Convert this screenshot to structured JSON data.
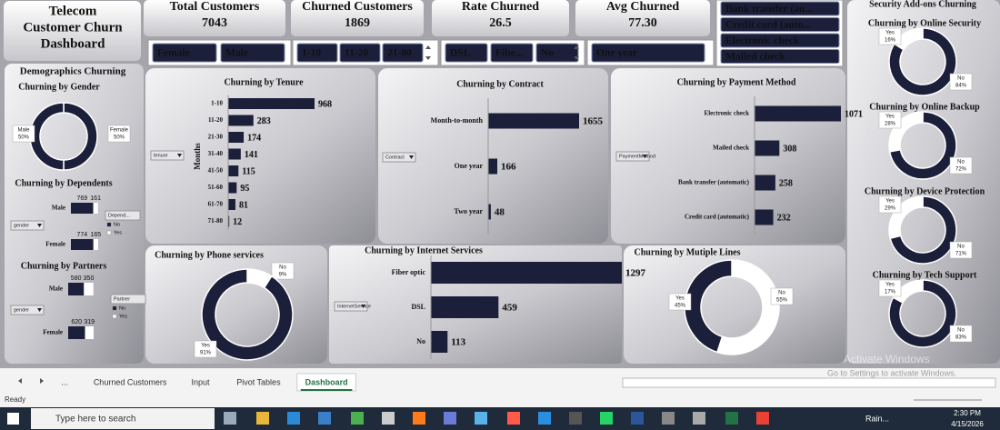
{
  "header": {
    "title_lines": [
      "Telecom",
      "Customer Churn",
      "Dashboard"
    ]
  },
  "kpis": [
    {
      "label": "Total Customers",
      "value": 7043
    },
    {
      "label": "Churned Customers",
      "value": 1869
    },
    {
      "label": "Rate Churned",
      "value": 26.5
    },
    {
      "label": "Avg Churned",
      "value": "77.30"
    }
  ],
  "slicers": {
    "payment": [
      "Bank transfer (au...",
      "Credit card (auto...",
      "Electronic check",
      "Mailed check"
    ],
    "gender": [
      "Female",
      "Male"
    ],
    "tenure": [
      "1-10",
      "11-20",
      "21-80"
    ],
    "internet": [
      "DSL",
      "Fibe...",
      "No"
    ],
    "contract": [
      "One year"
    ]
  },
  "panels": {
    "demographics": "Demographics Churning",
    "security": "Security Add-ons Churning"
  },
  "chart_data": [
    {
      "type": "doughnut",
      "title": "Churning by Gender",
      "categories": [
        "Female",
        "Male"
      ],
      "values": [
        50,
        50
      ],
      "value_labels": [
        "50%",
        "50%"
      ],
      "colors": [
        "#1c1f3a",
        "#1c1f3a"
      ]
    },
    {
      "type": "stacked-bar",
      "title": "Churning by Dependents",
      "filter": "gender",
      "legend_title": "Depend...",
      "categories": [
        "Male",
        "Female"
      ],
      "series": [
        {
          "name": "No",
          "color": "#1c1f3a",
          "values": [
            769,
            774
          ]
        },
        {
          "name": "Yes",
          "color": "#ffffff",
          "values": [
            161,
            165
          ]
        }
      ]
    },
    {
      "type": "stacked-bar",
      "title": "Churning by Partners",
      "filter": "gender",
      "legend_title": "Partner",
      "categories": [
        "Male",
        "Female"
      ],
      "series": [
        {
          "name": "No",
          "color": "#1c1f3a",
          "values": [
            580,
            620
          ]
        },
        {
          "name": "Yes",
          "color": "#ffffff",
          "values": [
            350,
            319
          ]
        }
      ]
    },
    {
      "type": "bar",
      "title": "Churning by Tenure",
      "filter": "tenure",
      "axis_label": "Months",
      "categories": [
        "1-10",
        "11-20",
        "21-30",
        "31-40",
        "41-50",
        "51-60",
        "61-70",
        "71-80"
      ],
      "values": [
        968,
        283,
        174,
        141,
        115,
        95,
        81,
        12
      ],
      "color": "#1c1f3a"
    },
    {
      "type": "bar",
      "title": "Churning by Contract",
      "filter": "Contract",
      "categories": [
        "Month-to-month",
        "One year",
        "Two year"
      ],
      "values": [
        1655,
        166,
        48
      ],
      "color": "#1c1f3a"
    },
    {
      "type": "bar",
      "title": "Churning by Payment Method",
      "filter": "PaymentMethod",
      "categories": [
        "Electronic check",
        "Mailed check",
        "Bank transfer (automatic)",
        "Credit card (automatic)"
      ],
      "values": [
        1071,
        308,
        258,
        232
      ],
      "color": "#1c1f3a"
    },
    {
      "type": "doughnut",
      "title": "Churning by Phone services",
      "categories": [
        "No",
        "Yes"
      ],
      "values": [
        9,
        91
      ],
      "value_labels": [
        "9%",
        "91%"
      ],
      "colors": [
        "#ffffff",
        "#1c1f3a"
      ]
    },
    {
      "type": "bar",
      "title": "Churning by Internet Services",
      "filter": "InternetService",
      "categories": [
        "Fiber optic",
        "DSL",
        "No"
      ],
      "values": [
        1297,
        459,
        113
      ],
      "color": "#1c1f3a"
    },
    {
      "type": "doughnut",
      "title": "Churning by Mutiple Lines",
      "categories": [
        "No",
        "Yes"
      ],
      "values": [
        55,
        45
      ],
      "value_labels": [
        "55%",
        "45%"
      ],
      "colors": [
        "#ffffff",
        "#1c1f3a"
      ]
    },
    {
      "type": "doughnut",
      "title": "Churning by Online Security",
      "categories": [
        "No",
        "Yes"
      ],
      "values": [
        84,
        16
      ],
      "value_labels": [
        "84%",
        "16%"
      ],
      "colors": [
        "#1c1f3a",
        "#ffffff"
      ]
    },
    {
      "type": "doughnut",
      "title": "Churning by Online Backup",
      "categories": [
        "No",
        "Yes"
      ],
      "values": [
        72,
        28
      ],
      "value_labels": [
        "72%",
        "28%"
      ],
      "colors": [
        "#1c1f3a",
        "#ffffff"
      ]
    },
    {
      "type": "doughnut",
      "title": "Churning by Device Protection",
      "categories": [
        "No",
        "Yes"
      ],
      "values": [
        71,
        29
      ],
      "value_labels": [
        "71%",
        "29%"
      ],
      "colors": [
        "#1c1f3a",
        "#ffffff"
      ]
    },
    {
      "type": "doughnut",
      "title": "Churning by Tech Support",
      "categories": [
        "No",
        "Yes"
      ],
      "values": [
        83,
        17
      ],
      "value_labels": [
        "83%",
        "17%"
      ],
      "colors": [
        "#1c1f3a",
        "#ffffff"
      ]
    }
  ],
  "excel": {
    "sheet_tabs": [
      "...",
      "Churned Customers",
      "Input",
      "Pivot Tables",
      "Dashboard"
    ],
    "active_tab": "Dashboard",
    "status": "Ready"
  },
  "watermark": [
    "Activate Windows",
    "Go to Settings to activate Windows."
  ],
  "taskbar": {
    "search": "Type here to search",
    "weather": "Rain...",
    "time": "2:30 PM",
    "date": "4/15/2026"
  }
}
